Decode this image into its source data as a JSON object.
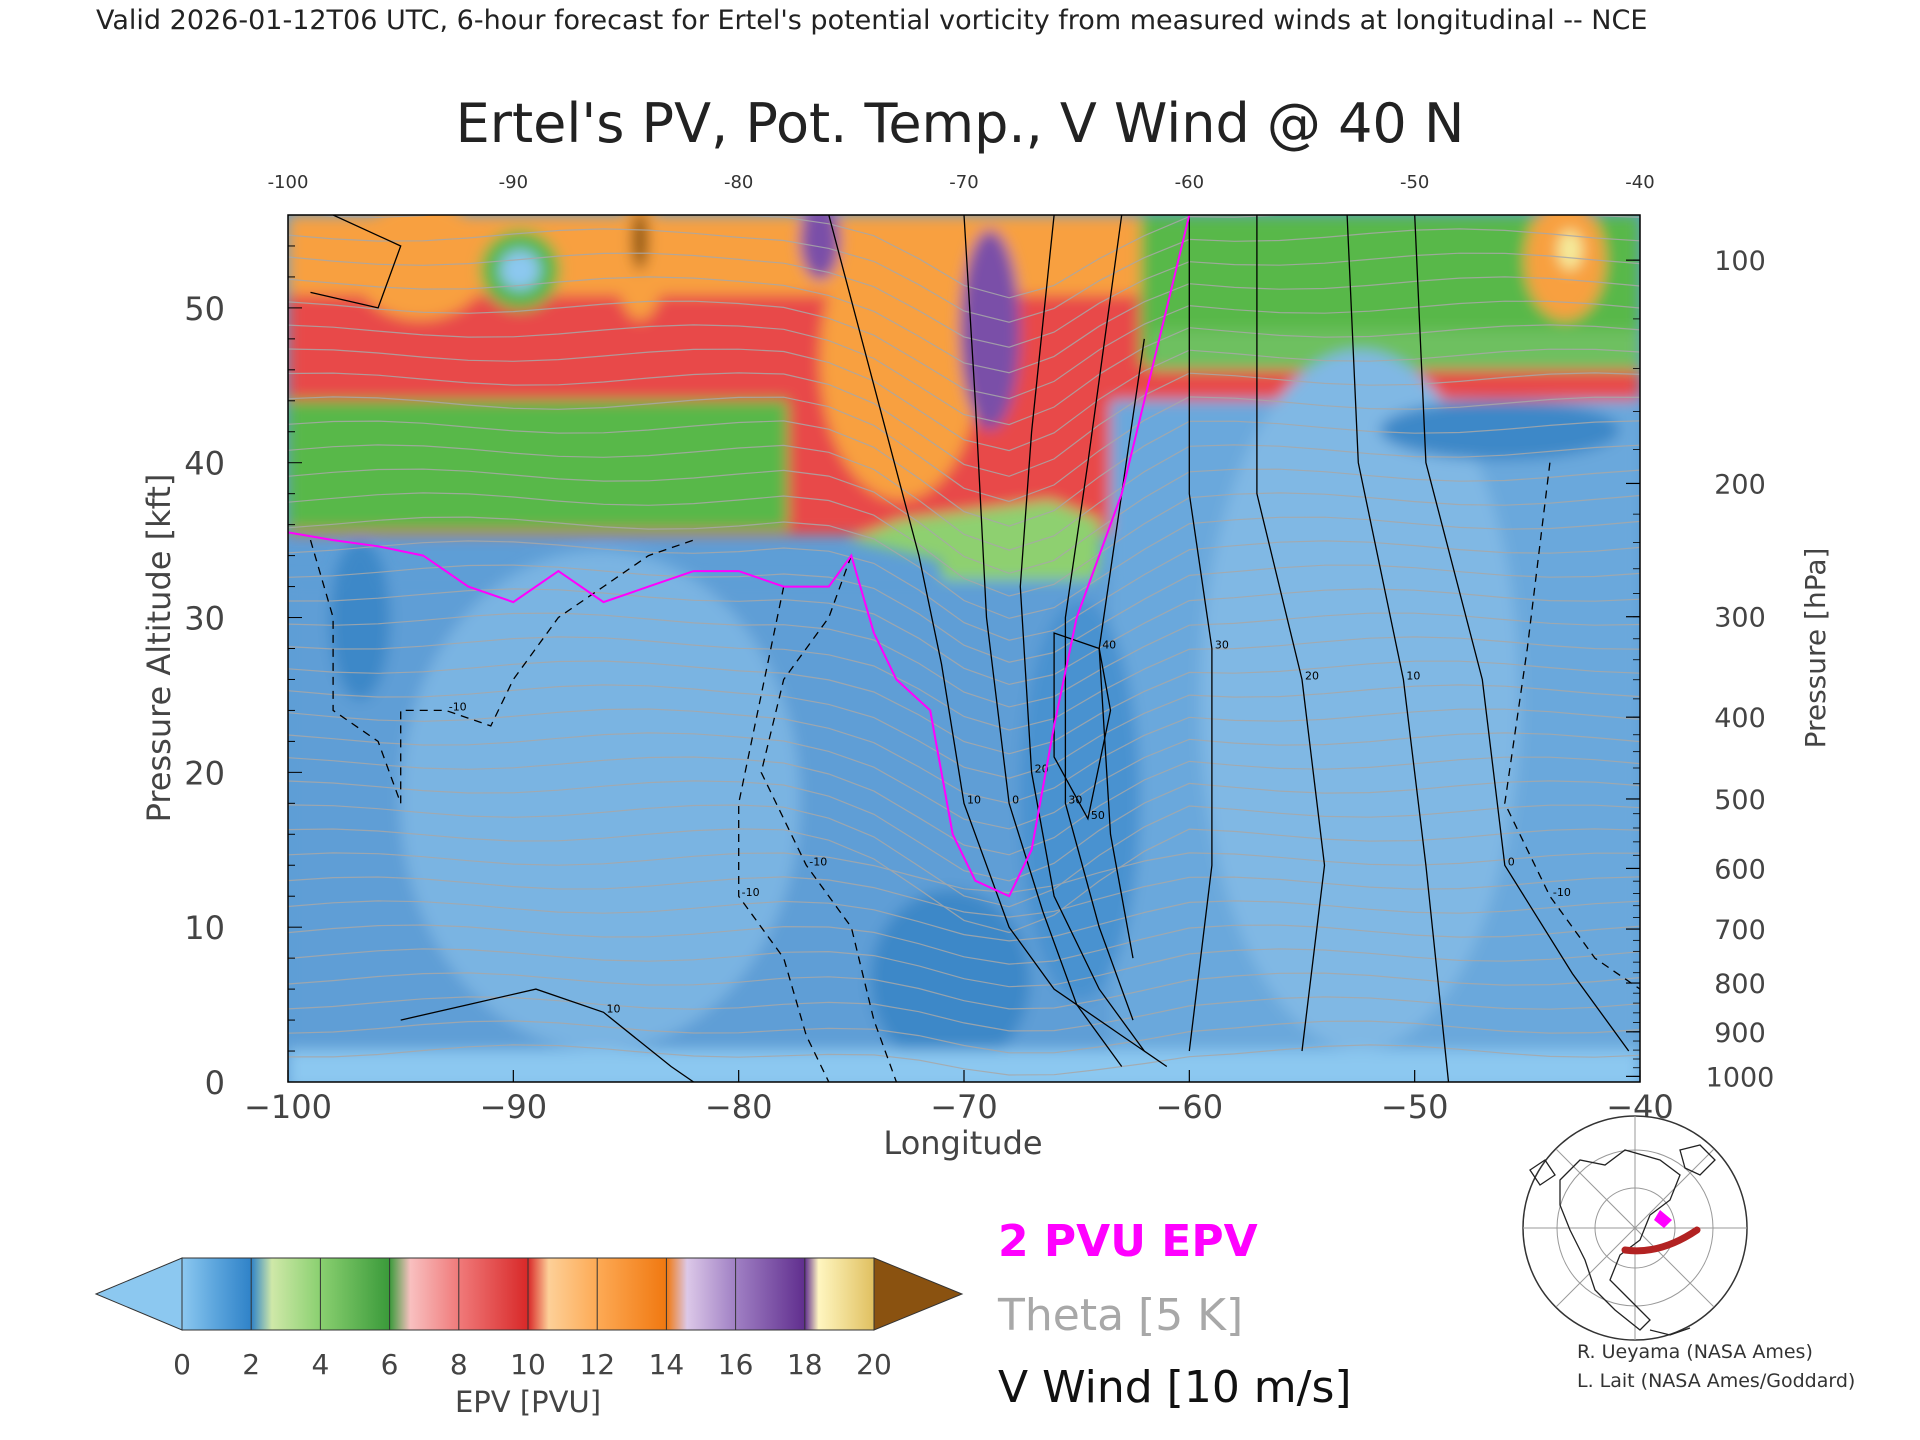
{
  "header": {
    "valid_line": "Valid 2026-01-12T06 UTC, 6-hour forecast for Ertel's potential vorticity from measured winds at longitudinal -- NCE"
  },
  "chart_data": {
    "type": "heatmap",
    "title": "Ertel's PV, Pot. Temp., V Wind @ 40 N",
    "xlabel": "Longitude",
    "ylabel": "Pressure Altitude [kft]",
    "y2label": "Pressure [hPa]",
    "xlim": [
      -100,
      -40
    ],
    "ylim": [
      0,
      56
    ],
    "x_ticks": [
      -100,
      -90,
      -80,
      -70,
      -60,
      -50,
      -40
    ],
    "x_tick_labels": [
      "−100",
      "−90",
      "−80",
      "−70",
      "−60",
      "−50",
      "−40"
    ],
    "x_top_tick_labels": [
      "-100",
      "-90",
      "-80",
      "-70",
      "-60",
      "-50",
      "-40"
    ],
    "y_ticks": [
      0,
      10,
      20,
      30,
      40,
      50
    ],
    "y_tick_labels": [
      "0",
      "10",
      "20",
      "30",
      "40",
      "50"
    ],
    "pressure_ticks": [
      {
        "hpa": 100,
        "label": "100"
      },
      {
        "hpa": 200,
        "label": "200"
      },
      {
        "hpa": 300,
        "label": "300"
      },
      {
        "hpa": 400,
        "label": "400"
      },
      {
        "hpa": 500,
        "label": "500"
      },
      {
        "hpa": 600,
        "label": "600"
      },
      {
        "hpa": 700,
        "label": "700"
      },
      {
        "hpa": 800,
        "label": "800"
      },
      {
        "hpa": 900,
        "label": "900"
      },
      {
        "hpa": 1000,
        "label": "1000"
      }
    ],
    "tropopause_2pvu_kft": [
      [
        -100,
        35.5
      ],
      [
        -98,
        35
      ],
      [
        -96,
        34.6
      ],
      [
        -94,
        34
      ],
      [
        -92,
        32
      ],
      [
        -90,
        31
      ],
      [
        -88,
        33
      ],
      [
        -86,
        31
      ],
      [
        -84,
        32
      ],
      [
        -82,
        33
      ],
      [
        -80,
        33
      ],
      [
        -78,
        32
      ],
      [
        -76,
        32
      ],
      [
        -75,
        34
      ],
      [
        -74,
        29
      ],
      [
        -73,
        26
      ],
      [
        -71.5,
        24
      ],
      [
        -70.5,
        16
      ],
      [
        -69.5,
        13
      ],
      [
        -68,
        12
      ],
      [
        -67,
        15
      ],
      [
        -66,
        23
      ],
      [
        -65,
        30
      ],
      [
        -64,
        34
      ],
      [
        -63,
        38
      ],
      [
        -62,
        44
      ],
      [
        -61,
        50
      ],
      [
        -60,
        56
      ]
    ],
    "wind_v_contours": [
      {
        "label": "10",
        "style": "solid",
        "points": [
          [
            -76,
            56
          ],
          [
            -74,
            45
          ],
          [
            -72,
            34
          ],
          [
            -71,
            27
          ],
          [
            -70,
            18
          ],
          [
            -68,
            10
          ],
          [
            -66,
            6
          ],
          [
            -63,
            3
          ],
          [
            -61,
            1
          ]
        ]
      },
      {
        "label": "0",
        "style": "solid",
        "points": [
          [
            -70,
            56
          ],
          [
            -69.5,
            44
          ],
          [
            -69,
            30
          ],
          [
            -68,
            18
          ],
          [
            -66.5,
            11
          ],
          [
            -65,
            5
          ],
          [
            -63,
            1
          ]
        ]
      },
      {
        "label": "20",
        "style": "solid",
        "points": [
          [
            -66,
            56
          ],
          [
            -67,
            42
          ],
          [
            -67.5,
            32
          ],
          [
            -67,
            20
          ],
          [
            -66,
            12
          ],
          [
            -64,
            6
          ],
          [
            -62,
            2
          ]
        ]
      },
      {
        "label": "30",
        "style": "solid",
        "points": [
          [
            -63,
            56
          ],
          [
            -64.5,
            40
          ],
          [
            -65.5,
            30
          ],
          [
            -65.5,
            18
          ],
          [
            -64,
            10
          ],
          [
            -62.5,
            4
          ]
        ]
      },
      {
        "label": "40",
        "style": "solid",
        "points": [
          [
            -62,
            48
          ],
          [
            -63,
            38
          ],
          [
            -64,
            28
          ],
          [
            -63.5,
            16
          ],
          [
            -62.5,
            8
          ]
        ]
      },
      {
        "label": "50",
        "style": "solid",
        "points": [
          [
            -64,
            28
          ],
          [
            -66,
            29
          ],
          [
            -66,
            21
          ],
          [
            -64.5,
            17
          ],
          [
            -63.5,
            24
          ],
          [
            -64,
            28
          ]
        ]
      },
      {
        "label": "30",
        "style": "solid",
        "points": [
          [
            -60,
            56
          ],
          [
            -60,
            38
          ],
          [
            -59,
            28
          ],
          [
            -59,
            14
          ],
          [
            -60,
            2
          ]
        ]
      },
      {
        "label": "20",
        "style": "solid",
        "points": [
          [
            -57,
            56
          ],
          [
            -57,
            38
          ],
          [
            -55,
            26
          ],
          [
            -54,
            14
          ],
          [
            -55,
            2
          ]
        ]
      },
      {
        "label": "10",
        "style": "solid",
        "points": [
          [
            -53,
            56
          ],
          [
            -52.5,
            40
          ],
          [
            -50.5,
            26
          ],
          [
            -49.5,
            14
          ],
          [
            -48.5,
            0
          ]
        ]
      },
      {
        "label": "0",
        "style": "solid",
        "points": [
          [
            -50,
            56
          ],
          [
            -49.5,
            40
          ],
          [
            -47,
            26
          ],
          [
            -46,
            14
          ],
          [
            -43,
            7
          ],
          [
            -40.5,
            2
          ]
        ]
      },
      {
        "label": "10",
        "style": "solid",
        "points": [
          [
            -95,
            4
          ],
          [
            -92,
            5
          ],
          [
            -89,
            6
          ],
          [
            -86,
            4.5
          ],
          [
            -83,
            1
          ],
          [
            -82,
            0
          ]
        ]
      },
      {
        "label": "",
        "style": "solid",
        "points": [
          [
            -98,
            56
          ],
          [
            -95,
            54
          ],
          [
            -96,
            50
          ],
          [
            -99,
            51
          ]
        ]
      },
      {
        "label": "-10",
        "style": "dashed",
        "points": [
          [
            -99,
            35
          ],
          [
            -98,
            30
          ],
          [
            -98,
            24
          ],
          [
            -96,
            22
          ],
          [
            -95,
            18
          ],
          [
            -95,
            24
          ],
          [
            -93,
            24
          ],
          [
            -91,
            23
          ],
          [
            -90,
            26
          ],
          [
            -88,
            30
          ],
          [
            -86,
            32
          ],
          [
            -84,
            34
          ],
          [
            -82,
            35
          ]
        ]
      },
      {
        "label": "-10",
        "style": "dashed",
        "points": [
          [
            -78,
            32
          ],
          [
            -79,
            25
          ],
          [
            -80,
            18
          ],
          [
            -80,
            12
          ],
          [
            -78,
            8
          ],
          [
            -77,
            3
          ],
          [
            -76,
            0
          ]
        ]
      },
      {
        "label": "-10",
        "style": "dashed",
        "points": [
          [
            -75,
            34
          ],
          [
            -76,
            30
          ],
          [
            -78,
            26
          ],
          [
            -79,
            20
          ],
          [
            -77,
            14
          ],
          [
            -75,
            10
          ],
          [
            -74,
            4
          ],
          [
            -73,
            0
          ]
        ]
      },
      {
        "label": "-10",
        "style": "dashed",
        "points": [
          [
            -44,
            40
          ],
          [
            -45,
            28
          ],
          [
            -46,
            18
          ],
          [
            -44,
            12
          ],
          [
            -42,
            8
          ],
          [
            -40,
            6
          ]
        ]
      }
    ]
  },
  "legend": {
    "pv_label": "2 PVU EPV",
    "theta_label": "Theta [5 K]",
    "wind_label": "V Wind [10 m/s]"
  },
  "colorbar": {
    "label": "EPV [PVU]",
    "tick_labels": [
      "0",
      "2",
      "4",
      "6",
      "8",
      "10",
      "12",
      "14",
      "16",
      "18",
      "20"
    ],
    "colors": [
      "#8cc8f0",
      "#2f82c8",
      "#b9e29a",
      "#58b848",
      "#f4a0a0",
      "#e03838",
      "#fdb060",
      "#f88a18",
      "#c2a6d8",
      "#7242a2",
      "#f4ec9c",
      "#8a5210"
    ]
  },
  "credits": {
    "line1": "R. Ueyama (NASA Ames)",
    "line2": "L. Lait (NASA Ames/Goddard)"
  },
  "colors": {
    "pv_contour": "#ff00ff",
    "theta": "#a0a0a0",
    "wind": "#000000",
    "route": "#b22222"
  }
}
